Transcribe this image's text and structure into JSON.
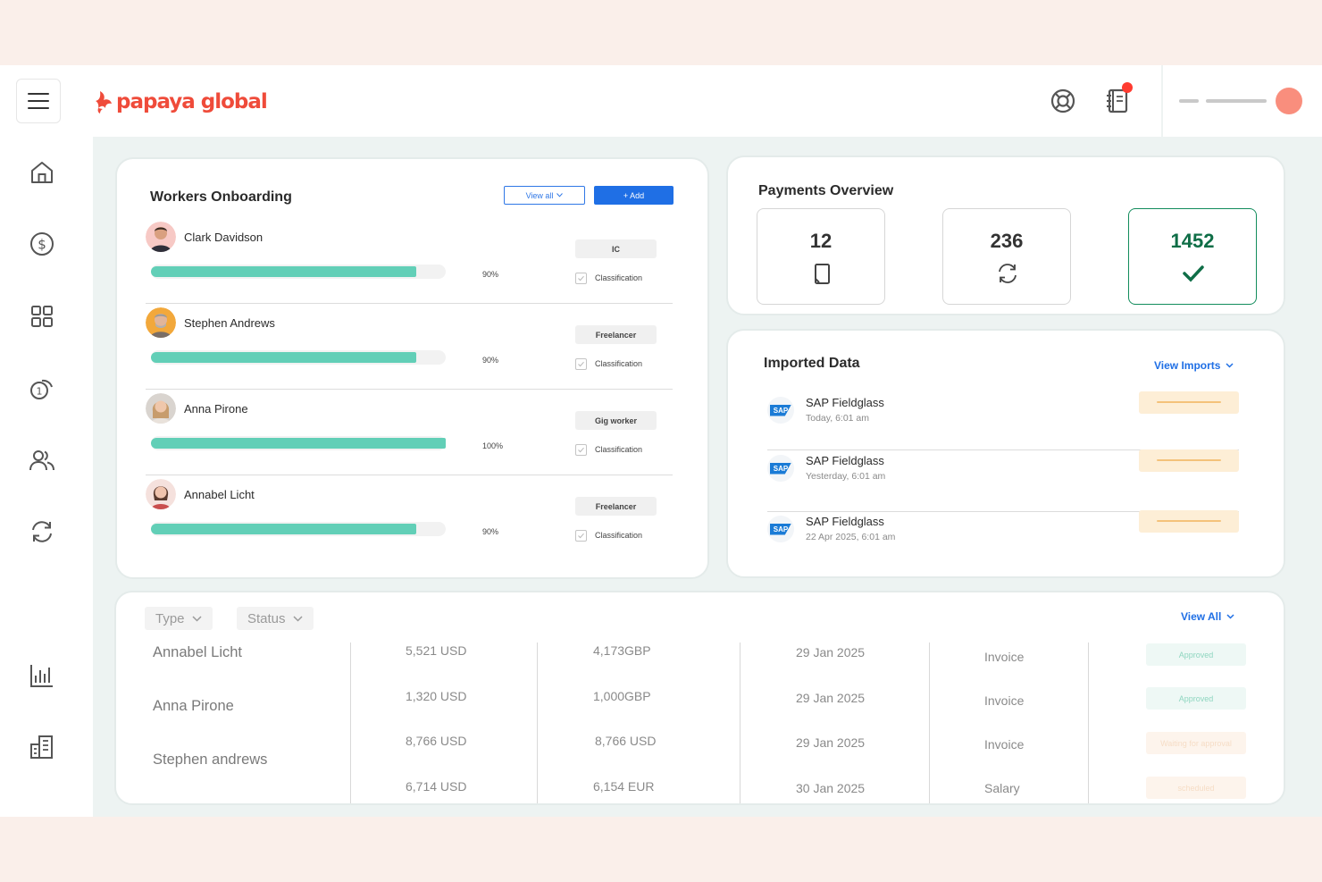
{
  "brand": {
    "name": "papaya global",
    "accent": "#ef4b3a"
  },
  "topbar": {
    "menu_icon": "hamburger-icon",
    "help_icon": "lifebuoy-icon",
    "notes_icon": "notebook-icon"
  },
  "sidebar": {
    "items": [
      {
        "icon": "home-icon"
      },
      {
        "icon": "dollar-icon"
      },
      {
        "icon": "grid-icon"
      },
      {
        "icon": "coins-icon"
      },
      {
        "icon": "users-icon"
      },
      {
        "icon": "refresh-icon"
      },
      {
        "icon": "bar-chart-icon"
      },
      {
        "icon": "building-icon"
      }
    ]
  },
  "onboarding": {
    "title": "Workers Onboarding",
    "view_all_label": "View all",
    "add_label": "+ Add",
    "check_label": "Classification",
    "workers": [
      {
        "name": "Clark Davidson",
        "progress": 90,
        "pct_label": "90%",
        "type": "IC"
      },
      {
        "name": "Stephen Andrews",
        "progress": 90,
        "pct_label": "90%",
        "type": "Freelancer"
      },
      {
        "name": "Anna Pirone",
        "progress": 100,
        "pct_label": "100%",
        "type": "Gig worker"
      },
      {
        "name": "Annabel Licht",
        "progress": 90,
        "pct_label": "90%",
        "type": "Freelancer"
      }
    ]
  },
  "payments": {
    "title": "Payments Overview",
    "stats": [
      {
        "value": "12",
        "icon": "document-icon"
      },
      {
        "value": "236",
        "icon": "refresh-icon"
      },
      {
        "value": "1452",
        "icon": "checkmark-icon"
      }
    ]
  },
  "imported": {
    "title": "Imported Data",
    "view_label": "View Imports",
    "rows": [
      {
        "name": "SAP Fieldglass",
        "time": "Today, 6:01 am",
        "logo": "SAP"
      },
      {
        "name": "SAP Fieldglass",
        "time": "Yesterday, 6:01 am",
        "logo": "SAP"
      },
      {
        "name": "SAP Fieldglass",
        "time": "22 Apr 2025, 6:01 am",
        "logo": "SAP"
      }
    ]
  },
  "table": {
    "filters": [
      "Type",
      "Status"
    ],
    "view_all_label": "View All",
    "names": [
      "Annabel Licht",
      "Anna Pirone",
      "Stephen andrews"
    ],
    "rows": [
      {
        "amount": "5,521 USD",
        "converted": "4,173GBP",
        "date": "29 Jan 2025",
        "kind": "Invoice",
        "status": "Approved"
      },
      {
        "amount": "1,320 USD",
        "converted": "1,000GBP",
        "date": "29 Jan 2025",
        "kind": "Invoice",
        "status": "Approved"
      },
      {
        "amount": "8,766 USD",
        "converted": "8,766 USD",
        "date": "29 Jan 2025",
        "kind": "Invoice",
        "status": "Waiting for approval"
      },
      {
        "amount": "6,714 USD",
        "converted": "6,154 EUR",
        "date": "30 Jan 2025",
        "kind": "Salary",
        "status": "scheduled"
      }
    ]
  }
}
